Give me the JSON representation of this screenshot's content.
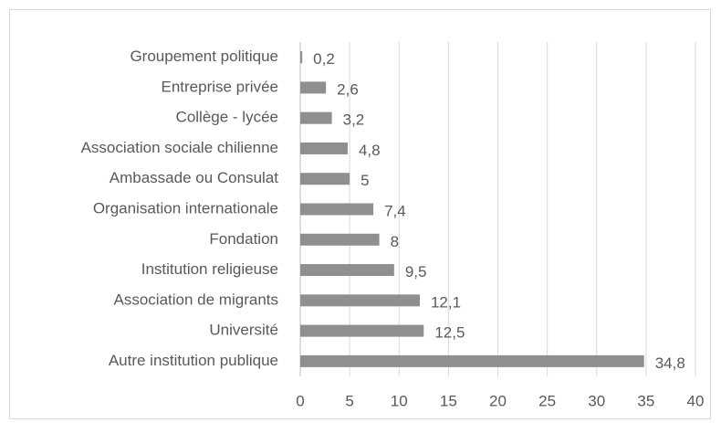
{
  "chart_data": {
    "type": "bar",
    "orientation": "horizontal",
    "categories": [
      "Groupement politique",
      "Entreprise privée",
      "Collège - lycée",
      "Association sociale chilienne",
      "Ambassade ou Consulat",
      "Organisation internationale",
      "Fondation",
      "Institution religieuse",
      "Association de migrants",
      "Université",
      "Autre institution publique"
    ],
    "values": [
      0.2,
      2.6,
      3.2,
      4.8,
      5,
      7.4,
      8,
      9.5,
      12.1,
      12.5,
      34.8
    ],
    "value_labels": [
      "0,2",
      "2,6",
      "3,2",
      "4,8",
      "5",
      "7,4",
      "8",
      "9,5",
      "12,1",
      "12,5",
      "34,8"
    ],
    "color": "#8f8f8f",
    "xlim": [
      0,
      40
    ],
    "xticks": [
      0,
      5,
      10,
      15,
      20,
      25,
      30,
      35,
      40
    ],
    "grid": true
  }
}
